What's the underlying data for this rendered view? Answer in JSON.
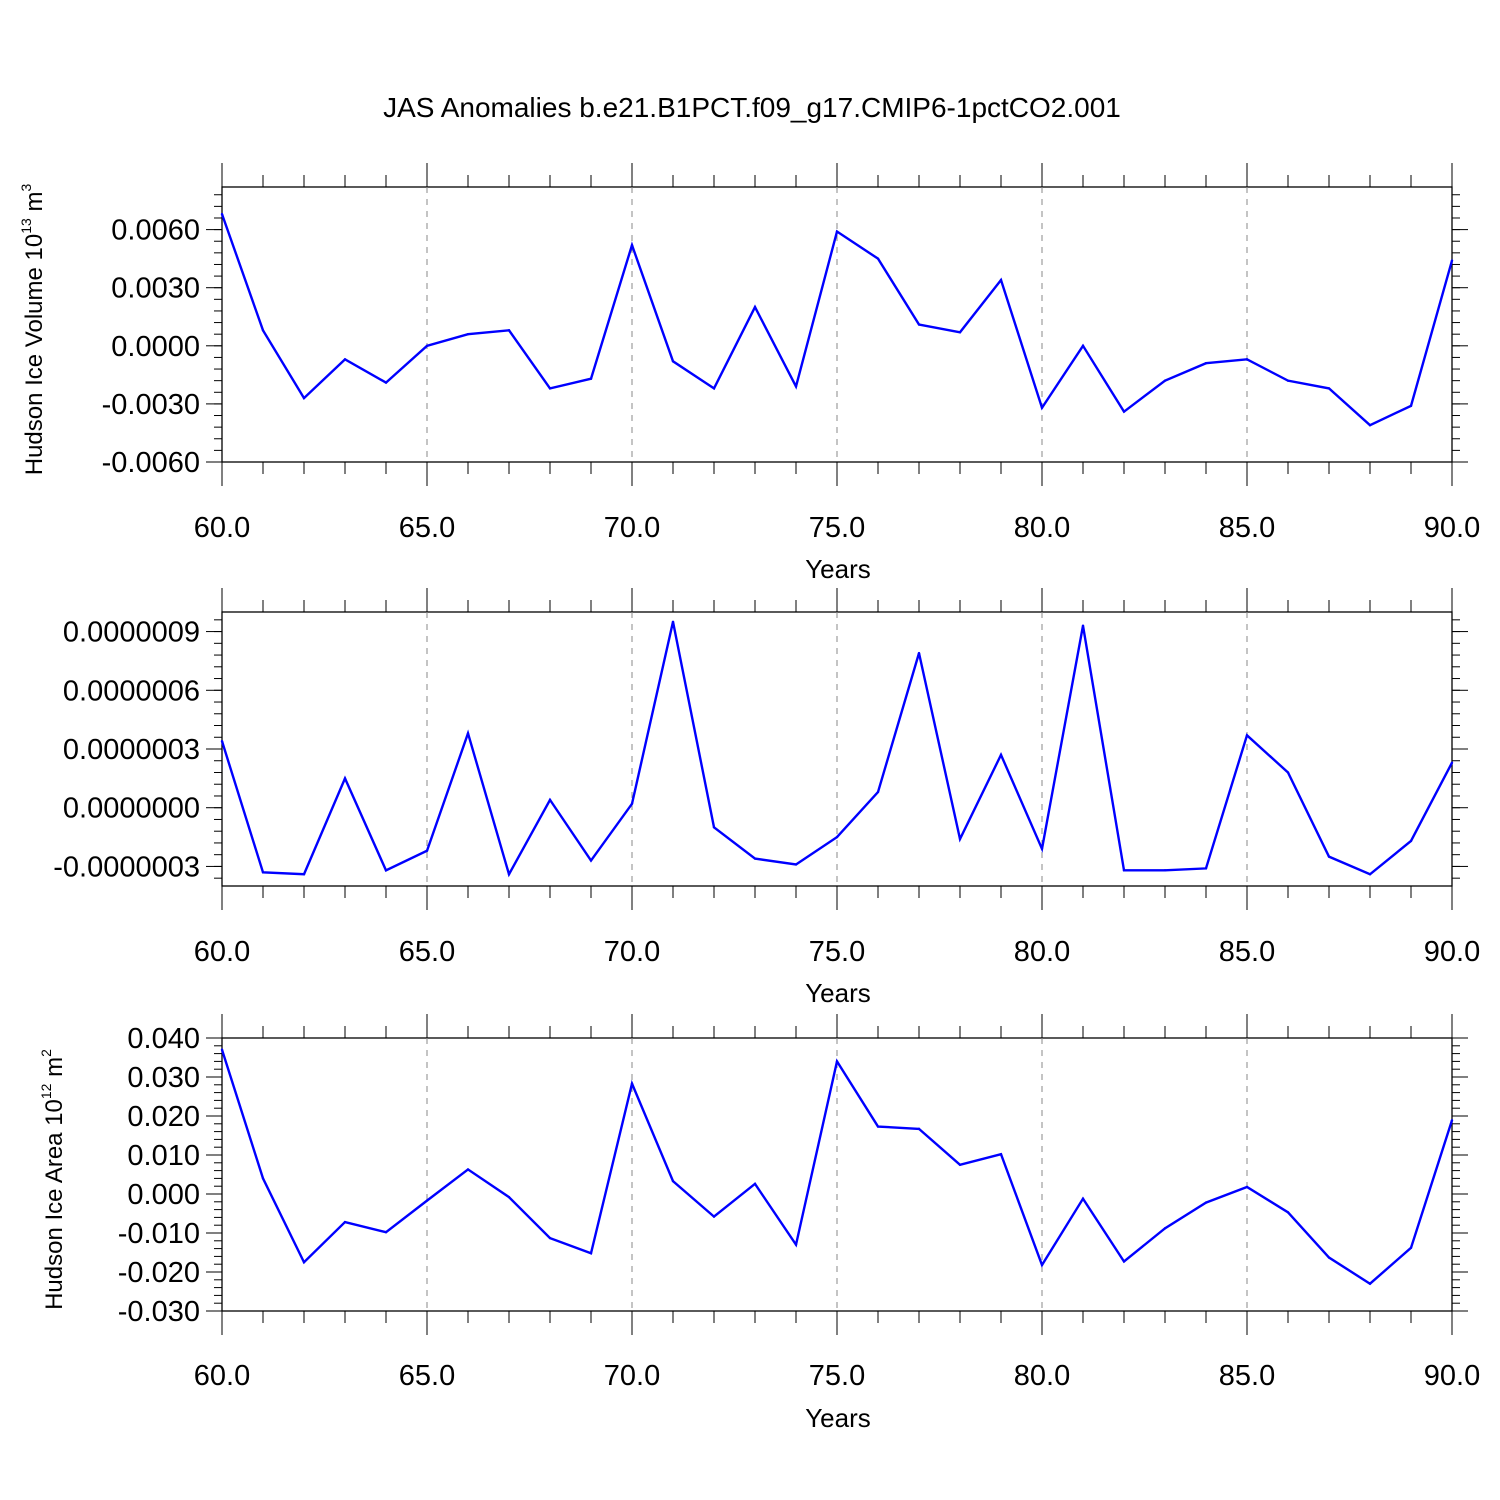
{
  "title": "JAS Anomalies b.e21.B1PCT.f09_g17.CMIP6-1pctCO2.001",
  "colors": {
    "series": "#0000ff",
    "axes": "#000000",
    "grid": "#888888"
  },
  "chart_data": [
    {
      "type": "line",
      "ylabel_main": "Hudson Ice Volume 10",
      "ylabel_exp": "13",
      "ylabel_unit": " m",
      "ylabel_unit_exp": "3",
      "xlabel": "Years",
      "xlim": [
        60,
        90
      ],
      "ylim": [
        -0.006,
        0.0082
      ],
      "xticks": [
        60,
        65,
        70,
        75,
        80,
        85,
        90
      ],
      "xtick_labels": [
        "60.0",
        "65.0",
        "70.0",
        "75.0",
        "80.0",
        "85.0",
        "90.0"
      ],
      "yticks": [
        -0.006,
        -0.003,
        0.0,
        0.003,
        0.006
      ],
      "ytick_labels": [
        "-0.0060",
        "-0.0030",
        "0.0000",
        "0.0030",
        "0.0060"
      ],
      "x": [
        60,
        61,
        62,
        63,
        64,
        65,
        66,
        67,
        68,
        69,
        70,
        71,
        72,
        73,
        74,
        75,
        76,
        77,
        78,
        79,
        80,
        81,
        82,
        83,
        84,
        85,
        86,
        87,
        88,
        89,
        90
      ],
      "values": [
        0.0068,
        0.0008,
        -0.0027,
        -0.0007,
        -0.0019,
        0.0,
        0.0006,
        0.0008,
        -0.0022,
        -0.0017,
        0.0052,
        -0.0008,
        -0.0022,
        0.002,
        -0.0021,
        0.0059,
        0.0045,
        0.0011,
        0.0007,
        0.0034,
        -0.0032,
        0.0,
        -0.0034,
        -0.0018,
        -0.0009,
        -0.0007,
        -0.0018,
        -0.0022,
        -0.0041,
        -0.0031,
        0.0044
      ]
    },
    {
      "type": "line",
      "ylabel_main": "",
      "xlabel": "Years",
      "xlim": [
        60,
        90
      ],
      "ylim": [
        -4e-07,
        1e-06
      ],
      "xticks": [
        60,
        65,
        70,
        75,
        80,
        85,
        90
      ],
      "xtick_labels": [
        "60.0",
        "65.0",
        "70.0",
        "75.0",
        "80.0",
        "85.0",
        "90.0"
      ],
      "yticks": [
        -3e-07,
        0.0,
        3e-07,
        6e-07,
        9e-07
      ],
      "ytick_labels": [
        "-0.0000003",
        "0.0000000",
        "0.0000003",
        "0.0000006",
        "0.0000009"
      ],
      "x": [
        60,
        61,
        62,
        63,
        64,
        65,
        66,
        67,
        68,
        69,
        70,
        71,
        72,
        73,
        74,
        75,
        76,
        77,
        78,
        79,
        80,
        81,
        82,
        83,
        84,
        85,
        86,
        87,
        88,
        89,
        90
      ],
      "values": [
        3.4e-07,
        -3.3e-07,
        -3.4e-07,
        1.5e-07,
        -3.2e-07,
        -2.2e-07,
        3.8e-07,
        -3.4e-07,
        4e-08,
        -2.7e-07,
        2e-08,
        9.5e-07,
        -1e-07,
        -2.6e-07,
        -2.9e-07,
        -1.5e-07,
        8e-08,
        7.9e-07,
        -1.6e-07,
        2.7e-07,
        -2.1e-07,
        9.3e-07,
        -3.2e-07,
        -3.2e-07,
        -3.1e-07,
        3.7e-07,
        1.8e-07,
        -2.5e-07,
        -3.4e-07,
        -1.7e-07,
        2.3e-07
      ]
    },
    {
      "type": "line",
      "ylabel_main": "Hudson Ice Area 10",
      "ylabel_exp": "12",
      "ylabel_unit": " m",
      "ylabel_unit_exp": "2",
      "xlabel": "Years",
      "xlim": [
        60,
        90
      ],
      "ylim": [
        -0.03,
        0.04
      ],
      "xticks": [
        60,
        65,
        70,
        75,
        80,
        85,
        90
      ],
      "xtick_labels": [
        "60.0",
        "65.0",
        "70.0",
        "75.0",
        "80.0",
        "85.0",
        "90.0"
      ],
      "yticks": [
        -0.03,
        -0.02,
        -0.01,
        0.0,
        0.01,
        0.02,
        0.03,
        0.04
      ],
      "ytick_labels": [
        "-0.030",
        "-0.020",
        "-0.010",
        "0.000",
        "0.010",
        "0.020",
        "0.030",
        "0.040"
      ],
      "x": [
        60,
        61,
        62,
        63,
        64,
        65,
        66,
        67,
        68,
        69,
        70,
        71,
        72,
        73,
        74,
        75,
        76,
        77,
        78,
        79,
        80,
        81,
        82,
        83,
        84,
        85,
        86,
        87,
        88,
        89,
        90
      ],
      "values": [
        0.037,
        0.004,
        -0.0175,
        -0.0072,
        -0.0098,
        -0.0017,
        0.0063,
        -0.0008,
        -0.0113,
        -0.0152,
        0.0283,
        0.0033,
        -0.0058,
        0.0026,
        -0.013,
        0.034,
        0.0173,
        0.0167,
        0.0075,
        0.0102,
        -0.0182,
        -0.0012,
        -0.0173,
        -0.0088,
        -0.0022,
        0.0018,
        -0.0047,
        -0.0163,
        -0.023,
        -0.0138,
        0.0189
      ]
    }
  ]
}
